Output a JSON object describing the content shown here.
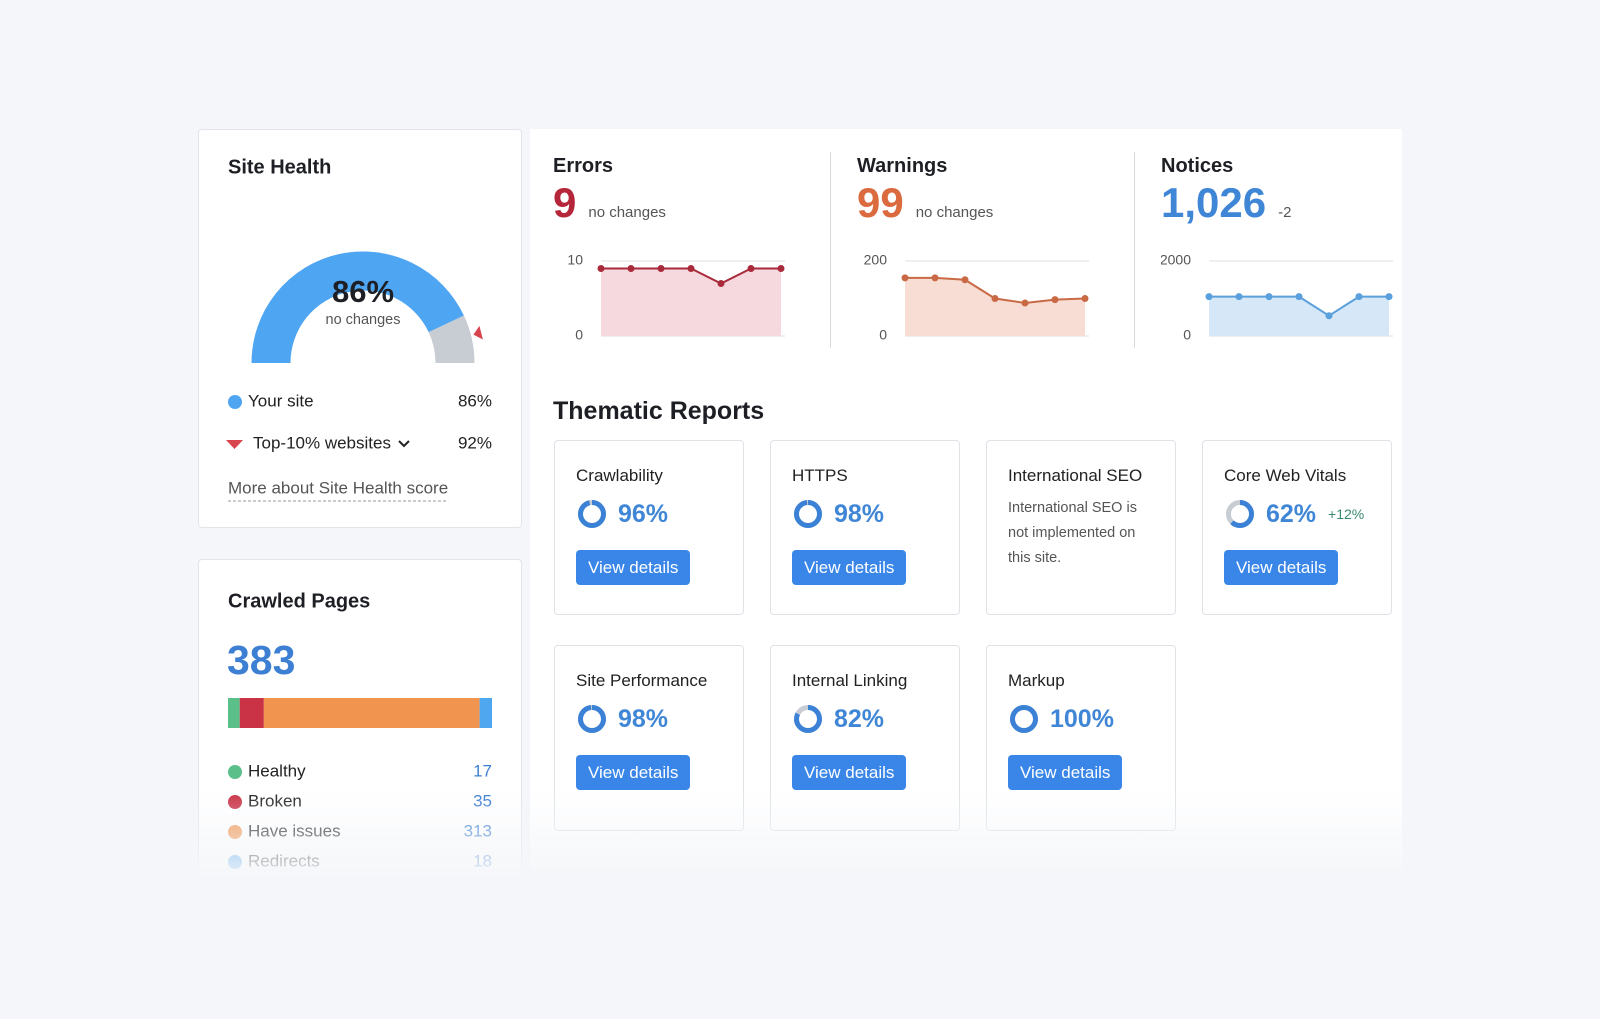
{
  "site_health": {
    "title": "Site Health",
    "score": 86,
    "score_label": "86%",
    "status": "no changes",
    "color": "#4ea5f2",
    "legend": [
      {
        "name": "Your site",
        "value": 86,
        "label": "86%"
      },
      {
        "name": "Top-10% websites",
        "value": 92,
        "label": "92%"
      }
    ],
    "link": "More about Site Health score"
  },
  "crawled_pages": {
    "title": "Crawled Pages",
    "total": 383,
    "segments": [
      {
        "name": "Healthy",
        "value": 17,
        "color": "#5bbf8a"
      },
      {
        "name": "Broken",
        "value": 35,
        "color": "#c93345"
      },
      {
        "name": "Have issues",
        "value": 313,
        "color": "#f0944f"
      },
      {
        "name": "Redirects",
        "value": 18,
        "color": "#4fa8ef"
      }
    ]
  },
  "issues": [
    {
      "title": "Errors",
      "count": 9,
      "change": "no changes",
      "color": "#b6263a",
      "chart": {
        "ylim": [
          0,
          10
        ],
        "yticks": [
          0,
          10
        ],
        "values": [
          9,
          9,
          9,
          9,
          7,
          9,
          9
        ],
        "color": "#a92a3a",
        "fill": "#f6d9de"
      }
    },
    {
      "title": "Warnings",
      "count": 99,
      "change": "no changes",
      "color": "#dc6a3f",
      "chart": {
        "ylim": [
          0,
          200
        ],
        "yticks": [
          0,
          200
        ],
        "values": [
          155,
          155,
          150,
          100,
          88,
          97,
          100
        ],
        "color": "#c96a45",
        "fill": "#f7ddd3"
      }
    },
    {
      "title": "Notices",
      "count": {
        "value": 1026,
        "label": "1,026"
      },
      "change": "-2",
      "color": "#3f86d6",
      "chart": {
        "ylim": [
          0,
          2000
        ],
        "yticks": [
          0,
          2000
        ],
        "values": [
          1050,
          1050,
          1050,
          1050,
          540,
          1050,
          1050
        ],
        "color": "#5aa0dc",
        "fill": "#d6e8f8"
      }
    }
  ],
  "thematic_reports": {
    "title": "Thematic Reports",
    "cards": [
      {
        "title": "Crawlability",
        "score": 96,
        "score_label": "96%",
        "button": "View details"
      },
      {
        "title": "HTTPS",
        "score": 98,
        "score_label": "98%",
        "button": "View details"
      },
      {
        "title": "International SEO",
        "note": "International SEO is not implemented on this site."
      },
      {
        "title": "Core Web Vitals",
        "score": 62,
        "score_label": "62%",
        "change": "+12%",
        "button": "View details"
      },
      {
        "title": "Site Performance",
        "score": 98,
        "score_label": "98%",
        "button": "View details"
      },
      {
        "title": "Internal Linking",
        "score": 82,
        "score_label": "82%",
        "button": "View details"
      },
      {
        "title": "Markup",
        "score": 100,
        "score_label": "100%",
        "button": "View details"
      }
    ]
  }
}
